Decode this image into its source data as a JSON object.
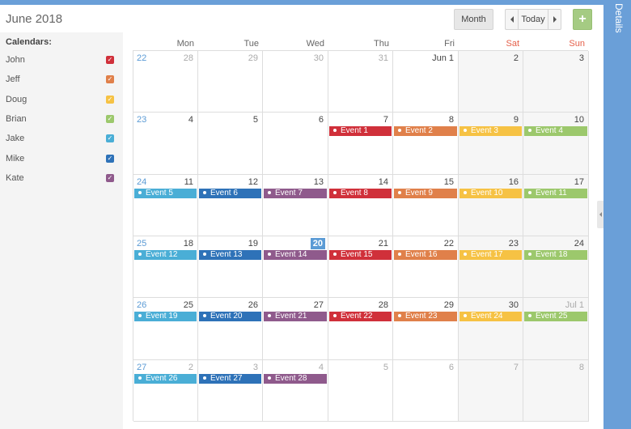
{
  "header": {
    "title": "June 2018",
    "month_label": "Month",
    "today_label": "Today",
    "add_label": "+"
  },
  "sidebar": {
    "heading": "Calendars:",
    "calendars": [
      {
        "name": "John",
        "color": "#d0303a"
      },
      {
        "name": "Jeff",
        "color": "#e0804a"
      },
      {
        "name": "Doug",
        "color": "#f6c244"
      },
      {
        "name": "Brian",
        "color": "#9cc86c"
      },
      {
        "name": "Jake",
        "color": "#4aaed6"
      },
      {
        "name": "Mike",
        "color": "#2e72b8"
      },
      {
        "name": "Kate",
        "color": "#8f5a8c"
      }
    ]
  },
  "details_label": "Details",
  "weekdays": [
    "Mon",
    "Tue",
    "Wed",
    "Thu",
    "Fri",
    "Sat",
    "Sun"
  ],
  "weeks": [
    {
      "week": "22",
      "days": [
        {
          "d": "28",
          "muted": true
        },
        {
          "d": "29",
          "muted": true
        },
        {
          "d": "30",
          "muted": true
        },
        {
          "d": "31",
          "muted": true
        },
        {
          "d": "Jun 1"
        },
        {
          "d": "2"
        },
        {
          "d": "3"
        }
      ],
      "events": []
    },
    {
      "week": "23",
      "days": [
        {
          "d": "4"
        },
        {
          "d": "5"
        },
        {
          "d": "6"
        },
        {
          "d": "7"
        },
        {
          "d": "8"
        },
        {
          "d": "9"
        },
        {
          "d": "10"
        }
      ],
      "events": [
        {
          "day": 3,
          "label": "Event 1",
          "cal": 0
        },
        {
          "day": 4,
          "label": "Event 2",
          "cal": 1
        },
        {
          "day": 5,
          "label": "Event 3",
          "cal": 2
        },
        {
          "day": 6,
          "label": "Event 4",
          "cal": 3
        }
      ]
    },
    {
      "week": "24",
      "days": [
        {
          "d": "11"
        },
        {
          "d": "12"
        },
        {
          "d": "13"
        },
        {
          "d": "14"
        },
        {
          "d": "15"
        },
        {
          "d": "16"
        },
        {
          "d": "17"
        }
      ],
      "events": [
        {
          "day": 0,
          "label": "Event 5",
          "cal": 4
        },
        {
          "day": 1,
          "label": "Event 6",
          "cal": 5
        },
        {
          "day": 2,
          "label": "Event 7",
          "cal": 6
        },
        {
          "day": 3,
          "label": "Event 8",
          "cal": 0
        },
        {
          "day": 4,
          "label": "Event 9",
          "cal": 1
        },
        {
          "day": 5,
          "label": "Event 10",
          "cal": 2
        },
        {
          "day": 6,
          "label": "Event 11",
          "cal": 3
        }
      ]
    },
    {
      "week": "25",
      "days": [
        {
          "d": "18"
        },
        {
          "d": "19"
        },
        {
          "d": "20",
          "today": true
        },
        {
          "d": "21"
        },
        {
          "d": "22"
        },
        {
          "d": "23"
        },
        {
          "d": "24"
        }
      ],
      "events": [
        {
          "day": 0,
          "label": "Event 12",
          "cal": 4
        },
        {
          "day": 1,
          "label": "Event 13",
          "cal": 5
        },
        {
          "day": 2,
          "label": "Event 14",
          "cal": 6
        },
        {
          "day": 3,
          "label": "Event 15",
          "cal": 0
        },
        {
          "day": 4,
          "label": "Event 16",
          "cal": 1
        },
        {
          "day": 5,
          "label": "Event 17",
          "cal": 2
        },
        {
          "day": 6,
          "label": "Event 18",
          "cal": 3
        }
      ]
    },
    {
      "week": "26",
      "days": [
        {
          "d": "25"
        },
        {
          "d": "26"
        },
        {
          "d": "27"
        },
        {
          "d": "28"
        },
        {
          "d": "29"
        },
        {
          "d": "30"
        },
        {
          "d": "Jul 1",
          "muted": true
        }
      ],
      "events": [
        {
          "day": 0,
          "label": "Event 19",
          "cal": 4
        },
        {
          "day": 1,
          "label": "Event 20",
          "cal": 5
        },
        {
          "day": 2,
          "label": "Event 21",
          "cal": 6
        },
        {
          "day": 3,
          "label": "Event 22",
          "cal": 0
        },
        {
          "day": 4,
          "label": "Event 23",
          "cal": 1
        },
        {
          "day": 5,
          "label": "Event 24",
          "cal": 2
        },
        {
          "day": 6,
          "label": "Event 25",
          "cal": 3
        }
      ]
    },
    {
      "week": "27",
      "days": [
        {
          "d": "2",
          "muted": true
        },
        {
          "d": "3",
          "muted": true
        },
        {
          "d": "4",
          "muted": true
        },
        {
          "d": "5",
          "muted": true
        },
        {
          "d": "6",
          "muted": true
        },
        {
          "d": "7",
          "muted": true
        },
        {
          "d": "8",
          "muted": true
        }
      ],
      "events": [
        {
          "day": 0,
          "label": "Event 26",
          "cal": 4
        },
        {
          "day": 1,
          "label": "Event 27",
          "cal": 5
        },
        {
          "day": 2,
          "label": "Event 28",
          "cal": 6
        }
      ]
    }
  ],
  "weekend_header_color": "#e5604a",
  "week_number_color": "#5b9bd5"
}
